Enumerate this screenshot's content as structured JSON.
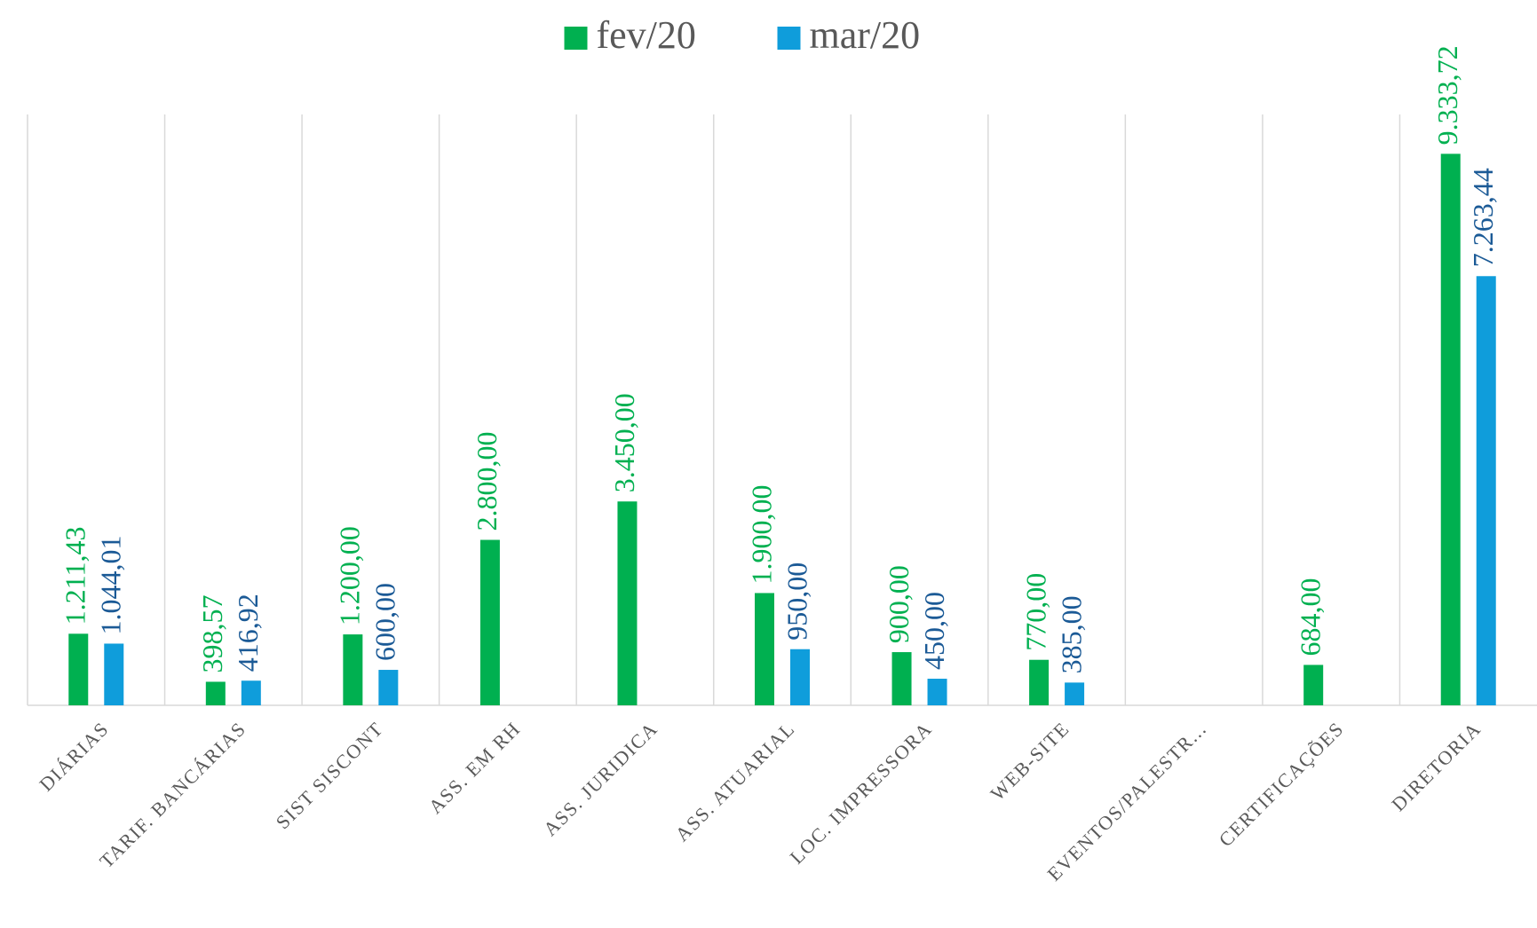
{
  "chart_data": {
    "type": "bar",
    "categories": [
      "DIÁRIAS",
      "TARIF. BANCÁRIAS",
      "SIST SISCONT",
      "ASS. EM RH",
      "ASS. JURIDICA",
      "ASS. ATUARIAL",
      "LOC. IMPRESSORA",
      "WEB-SITE",
      "EVENTOS/PALESTR...",
      "CERTIFICAÇÕES",
      "DIRETORIA"
    ],
    "series": [
      {
        "name": "fev/20",
        "color": "#00b050",
        "label_color": "#00b050",
        "values": [
          1211.43,
          398.57,
          1200,
          2800,
          3450,
          1900,
          900,
          770,
          null,
          684,
          9333.72
        ],
        "value_labels": [
          "1.211,43",
          "398,57",
          "1.200,00",
          "2.800,00",
          "3.450,00",
          "1.900,00",
          "900,00",
          "770,00",
          null,
          "684,00",
          "9.333,72"
        ]
      },
      {
        "name": "mar/20",
        "color": "#0f9ddb",
        "label_color": "#1b5a96",
        "values": [
          1044.01,
          416.92,
          600,
          null,
          null,
          950,
          450,
          385,
          null,
          null,
          7263.44
        ],
        "value_labels": [
          "1.044,01",
          "416,92",
          "600,00",
          null,
          null,
          "950,00",
          "450,00",
          "385,00",
          null,
          null,
          "7.263,44"
        ]
      }
    ],
    "ylim": [
      0,
      10000
    ],
    "legend": "top"
  }
}
